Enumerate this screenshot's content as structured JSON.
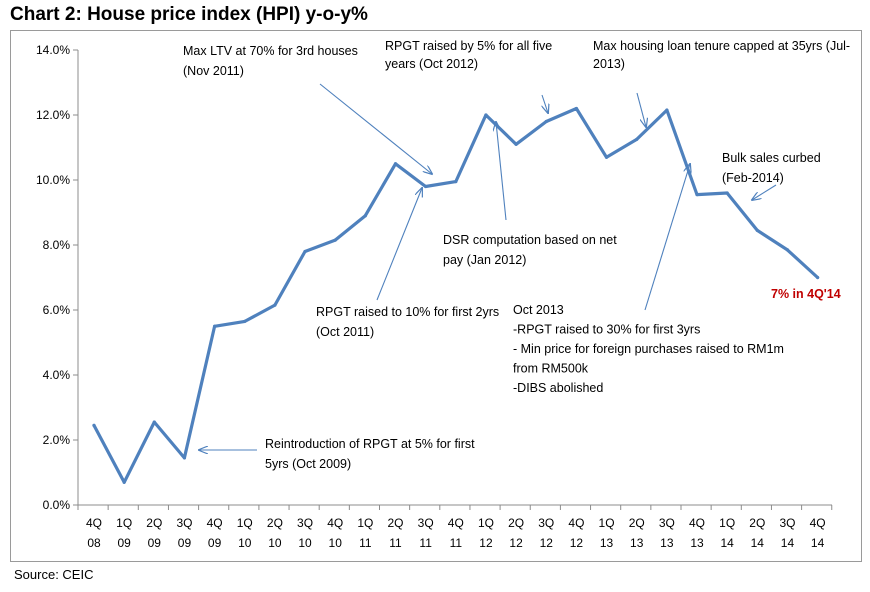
{
  "page": {
    "title": "Chart 2: House price index (HPI) y-o-y%",
    "source": "Source: CEIC"
  },
  "chart_data": {
    "type": "line",
    "title": "Chart 2: House price index (HPI) y-o-y%",
    "xlabel": "",
    "ylabel": "",
    "ylim": [
      0,
      14
    ],
    "y_ticks": [
      "0.0%",
      "2.0%",
      "4.0%",
      "6.0%",
      "8.0%",
      "10.0%",
      "12.0%",
      "14.0%"
    ],
    "grid": false,
    "line_color": "#4f81bd",
    "categories": [
      [
        "4Q",
        "08"
      ],
      [
        "1Q",
        "09"
      ],
      [
        "2Q",
        "09"
      ],
      [
        "3Q",
        "09"
      ],
      [
        "4Q",
        "09"
      ],
      [
        "1Q",
        "10"
      ],
      [
        "2Q",
        "10"
      ],
      [
        "3Q",
        "10"
      ],
      [
        "4Q",
        "10"
      ],
      [
        "1Q",
        "11"
      ],
      [
        "2Q",
        "11"
      ],
      [
        "3Q",
        "11"
      ],
      [
        "4Q",
        "11"
      ],
      [
        "1Q",
        "12"
      ],
      [
        "2Q",
        "12"
      ],
      [
        "3Q",
        "12"
      ],
      [
        "4Q",
        "12"
      ],
      [
        "1Q",
        "13"
      ],
      [
        "2Q",
        "13"
      ],
      [
        "3Q",
        "13"
      ],
      [
        "4Q",
        "13"
      ],
      [
        "1Q",
        "14"
      ],
      [
        "2Q",
        "14"
      ],
      [
        "3Q",
        "14"
      ],
      [
        "4Q",
        "14"
      ]
    ],
    "series": [
      {
        "values": [
          2.45,
          0.7,
          2.55,
          1.45,
          5.5,
          5.65,
          6.15,
          7.8,
          8.15,
          8.9,
          10.5,
          9.8,
          9.95,
          12.0,
          11.1,
          11.8,
          12.2,
          10.7,
          11.25,
          12.15,
          9.55,
          9.6,
          8.45,
          7.85,
          7.0
        ]
      }
    ],
    "annotations": [
      {
        "lines": [
          "Max LTV at 70% for 3rd houses",
          "(Nov 2011)"
        ]
      },
      {
        "lines": [
          "RPGT raised by 5% for all five",
          "years (Oct 2012)"
        ]
      },
      {
        "lines": [
          "Max housing loan tenure capped at 35yrs (Jul-",
          "2013)"
        ]
      },
      {
        "lines": [
          "Bulk sales curbed",
          "(Feb-2014)"
        ]
      },
      {
        "lines": [
          "DSR computation based on net",
          "pay (Jan 2012)"
        ]
      },
      {
        "lines": [
          "RPGT raised to 10% for first 2yrs",
          "(Oct 2011)"
        ]
      },
      {
        "lines": [
          "Oct 2013",
          "-RPGT raised to 30% for first 3yrs",
          "- Min price for foreign purchases raised to RM1m",
          "from RM500k",
          "-DIBS abolished"
        ]
      },
      {
        "lines": [
          "Reintroduction of RPGT at 5% for first",
          "5yrs (Oct 2009)"
        ]
      }
    ],
    "highlight": "7% in 4Q'14",
    "highlight_color": "#c00000"
  }
}
